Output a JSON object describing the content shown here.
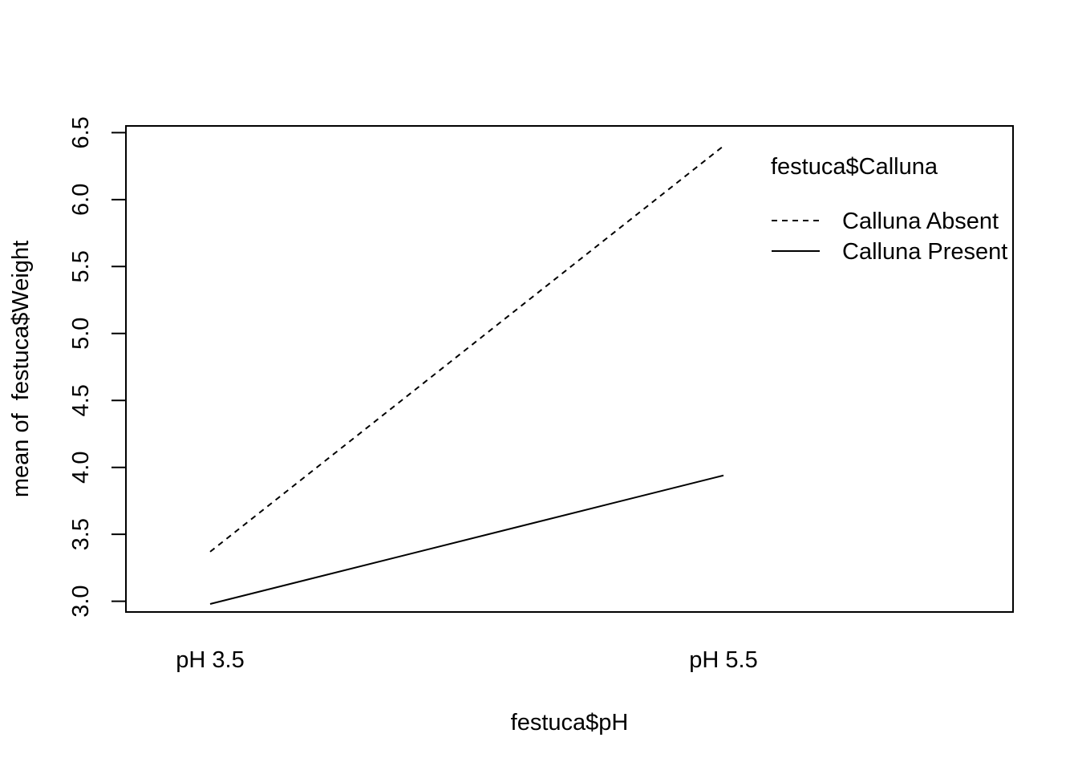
{
  "chart_data": {
    "type": "line",
    "xlabel": "festuca$pH",
    "ylabel": "mean of  festuca$Weight",
    "categories": [
      "pH 3.5",
      "pH 5.5"
    ],
    "series": [
      {
        "name": "Calluna Absent",
        "values": [
          3.37,
          6.4
        ],
        "line_style": "dashed",
        "color": "#000000"
      },
      {
        "name": "Calluna Present",
        "values": [
          2.98,
          3.94
        ],
        "line_style": "solid",
        "color": "#000000"
      }
    ],
    "ylim": [
      2.92,
      6.55
    ],
    "yticks": [
      "3.0",
      "3.5",
      "4.0",
      "4.5",
      "5.0",
      "5.5",
      "6.0",
      "6.5"
    ],
    "legend": {
      "title": "festuca$Calluna",
      "position": "top-right",
      "entries": [
        "Calluna Absent",
        "Calluna Present"
      ]
    },
    "grid": false
  }
}
